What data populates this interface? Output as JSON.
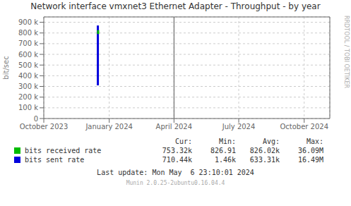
{
  "chart_data": {
    "type": "line",
    "title": "Network interface vmxnet3 Ethernet Adapter - Throughput - by year",
    "ylabel": "bit/sec",
    "side_label": "RRDTOOL / TOBI OETIKER",
    "xlim": [
      1696118400,
      1730851200
    ],
    "xticks": [
      {
        "value": 1696118400,
        "label": "October 2023"
      },
      {
        "value": 1704067200,
        "label": "January 2024"
      },
      {
        "value": 1711929600,
        "label": "April 2024"
      },
      {
        "value": 1719792000,
        "label": "July 2024"
      },
      {
        "value": 1727740800,
        "label": "October 2024"
      }
    ],
    "ylim": [
      0,
      950000
    ],
    "yticks": [
      0,
      {
        "value": 100000,
        "label": "100 k"
      },
      {
        "value": 200000,
        "label": "200 k"
      },
      {
        "value": 300000,
        "label": "300 k"
      },
      {
        "value": 400000,
        "label": "400 k"
      },
      {
        "value": 500000,
        "label": "500 k"
      },
      {
        "value": 600000,
        "label": "600 k"
      },
      {
        "value": 700000,
        "label": "700 k"
      },
      {
        "value": 800000,
        "label": "800 k"
      },
      {
        "value": 900000,
        "label": "900 k"
      }
    ],
    "grid": true,
    "series": [
      {
        "name": "bits received rate",
        "color": "#00bb00",
        "x": [
          1702714800,
          1702714800
        ],
        "values": [
          790000,
          826000
        ]
      },
      {
        "name": "bits sent rate",
        "color": "#0000dd",
        "x": [
          1702684800,
          1702684800
        ],
        "values": [
          310000,
          870000
        ]
      }
    ],
    "vlines": [
      1711929600
    ],
    "stats": {
      "columns": [
        "Cur:",
        "Min:",
        "Avg:",
        "Max:"
      ],
      "rows": [
        [
          "753.32k",
          "826.91",
          "826.02k",
          "36.09M"
        ],
        [
          "710.44k",
          "1.46k",
          "633.31k",
          "16.49M"
        ]
      ]
    },
    "footer": [
      "Last update: Mon May  6 23:10:01 2024",
      "Munin 2.0.25-2ubuntu0.16.04.4"
    ]
  }
}
